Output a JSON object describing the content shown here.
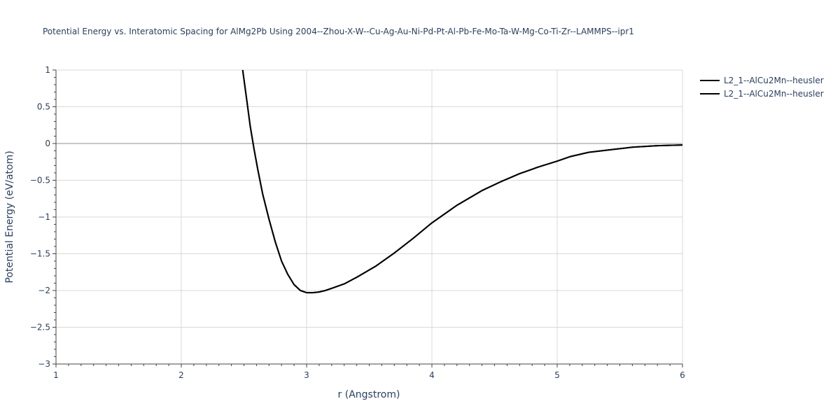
{
  "chart_data": {
    "type": "line",
    "title": "Potential Energy vs. Interatomic Spacing for AlMg2Pb Using 2004--Zhou-X-W--Cu-Ag-Au-Ni-Pd-Pt-Al-Pb-Fe-Mo-Ta-W-Mg-Co-Ti-Zr--LAMMPS--ipr1",
    "xlabel": "r (Angstrom)",
    "ylabel": "Potential Energy (eV/atom)",
    "xlim": [
      1,
      6
    ],
    "ylim": [
      -3,
      1
    ],
    "x_ticks": [
      "1",
      "2",
      "3",
      "4",
      "5",
      "6"
    ],
    "y_ticks": [
      "1",
      "0.5",
      "0",
      "−0.5",
      "−1",
      "−1.5",
      "−2",
      "−2.5",
      "−3"
    ],
    "grid": true,
    "legend_position": "top-right",
    "line_color": "#000000",
    "series": [
      {
        "name": "L2_1--AlCu2Mn--heusler",
        "x": [
          2.49,
          2.52,
          2.55,
          2.58,
          2.61,
          2.65,
          2.7,
          2.75,
          2.8,
          2.85,
          2.9,
          2.95,
          3.0,
          3.05,
          3.1,
          3.15,
          3.2,
          3.3,
          3.4,
          3.55,
          3.7,
          3.85,
          4.0,
          4.2,
          4.4,
          4.55,
          4.7,
          4.85,
          5.0,
          5.1,
          5.25,
          5.45,
          5.6,
          5.8,
          6.0
        ],
        "y": [
          1.0,
          0.62,
          0.24,
          -0.07,
          -0.35,
          -0.69,
          -1.03,
          -1.34,
          -1.6,
          -1.78,
          -1.92,
          -2.0,
          -2.03,
          -2.03,
          -2.02,
          -2.0,
          -1.97,
          -1.91,
          -1.82,
          -1.67,
          -1.49,
          -1.29,
          -1.08,
          -0.84,
          -0.64,
          -0.52,
          -0.41,
          -0.32,
          -0.24,
          -0.18,
          -0.12,
          -0.08,
          -0.05,
          -0.03,
          -0.02
        ]
      },
      {
        "name": "L2_1--AlCu2Mn--heusler",
        "x": [
          2.49,
          2.52,
          2.55,
          2.58,
          2.61,
          2.65,
          2.7,
          2.75,
          2.8,
          2.85,
          2.9,
          2.95,
          3.0,
          3.05,
          3.1,
          3.15,
          3.2,
          3.3,
          3.4,
          3.55,
          3.7,
          3.85,
          4.0,
          4.2,
          4.4,
          4.55,
          4.7,
          4.85,
          5.0,
          5.1,
          5.25,
          5.45,
          5.6,
          5.8,
          6.0
        ],
        "y": [
          1.0,
          0.62,
          0.24,
          -0.07,
          -0.35,
          -0.69,
          -1.03,
          -1.34,
          -1.6,
          -1.78,
          -1.92,
          -2.0,
          -2.03,
          -2.03,
          -2.02,
          -2.0,
          -1.97,
          -1.91,
          -1.82,
          -1.67,
          -1.49,
          -1.29,
          -1.08,
          -0.84,
          -0.64,
          -0.52,
          -0.41,
          -0.32,
          -0.24,
          -0.18,
          -0.12,
          -0.08,
          -0.05,
          -0.03,
          -0.02
        ]
      }
    ]
  }
}
